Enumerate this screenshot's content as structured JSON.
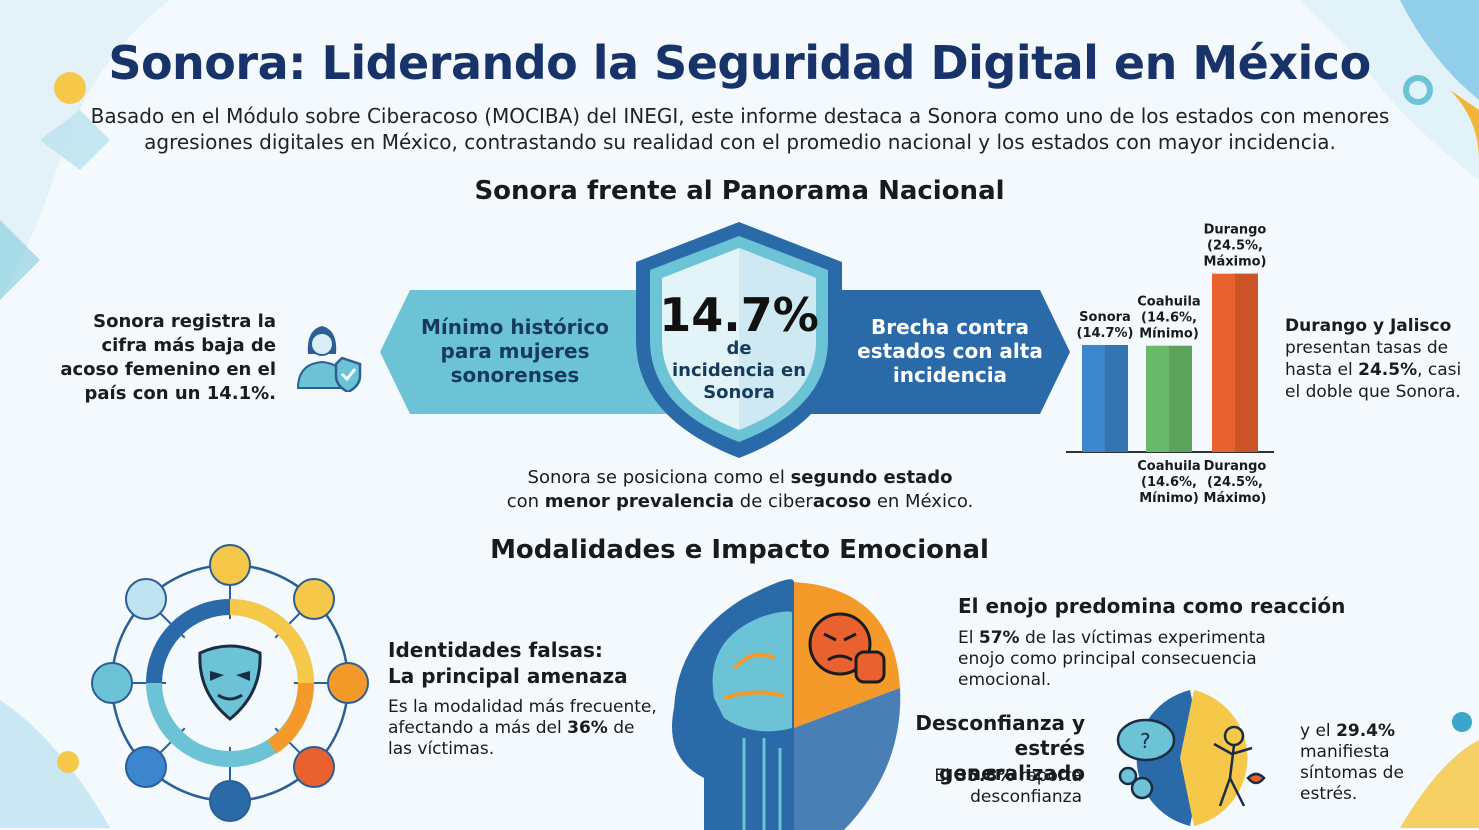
{
  "header": {
    "title": "Sonora: Liderando la Seguridad Digital en México",
    "subtitle": "Basado en el Módulo sobre Ciberacoso (MOCIBA) del INEGI, este informe destaca a Sonora como uno de los estados con menores agresiones digitales en México, contrastando su realidad con el promedio nacional y los estados con mayor incidencia."
  },
  "section1": {
    "title": "Sonora frente al Panorama Nacional",
    "left_text": "Sonora registra la cifra más baja de acoso femenino en el país con un 14.1%.",
    "left_arrow": "Mínimo histórico para mujeres sonorenses",
    "shield_value": "14.7%",
    "shield_label": "de incidencia en Sonora",
    "right_arrow": "Brecha contra estados con alta incidencia",
    "bottom_text_a": "Sonora se posiciona como el ",
    "bottom_text_b": "segundo estado",
    "bottom_text_c": "con ",
    "bottom_text_d": "menor prevalencia",
    "bottom_text_e": " de ciber",
    "bottom_text_f": "acoso",
    "bottom_text_g": " en México.",
    "right_text_a": "Durango y Jalisco",
    "right_text_b": "presentan tasas de hasta el ",
    "right_text_c": "24.5%",
    "right_text_d": ", casi el doble que Sonora."
  },
  "chart_data": {
    "type": "bar",
    "categories": [
      "Sonora",
      "Coahuila",
      "Durango"
    ],
    "values": [
      14.7,
      14.6,
      24.5
    ],
    "top_labels": [
      "Sonora (14.7%)",
      "Coahuila (14.6%, Mínimo)",
      "Durango (24.5%, Máximo)"
    ],
    "bottom_labels": [
      "",
      "Coahuila (14.6%, Mínimo)",
      "Durango (24.5%, Máximo)"
    ],
    "colors": [
      "#3b86cc",
      "#69b96a",
      "#e8612f"
    ]
  },
  "section2": {
    "title": "Modalidades e Impacto Emocional",
    "identity_title": "Identidades falsas: La principal amenaza",
    "identity_text_a": "Es la modalidad más frecuente, afectando a más del ",
    "identity_text_b": "36%",
    "identity_text_c": " de las víctimas.",
    "anger_title": "El enojo predomina como reacción",
    "anger_text_a": "El ",
    "anger_text_b": "57%",
    "anger_text_c": " de las víctimas experimenta enojo como principal consecuencia emocional.",
    "distrust_title": "Desconfianza y estrés generalizado",
    "distrust_text_a": "El ",
    "distrust_text_b": "35.8%",
    "distrust_text_c": " reporta desconfianza",
    "stress_text_a": "y el ",
    "stress_text_b": "29.4%",
    "stress_text_c": " manifiesta síntomas de estrés."
  },
  "colors": {
    "title": "#18336a",
    "teal": "#6cc3d5",
    "navy": "#2b5f95",
    "orange": "#f39a2b"
  },
  "icons": [
    "woman-shield-icon",
    "mask-icon",
    "angry-face-icon",
    "thought-bubble-icon",
    "stress-person-icon"
  ]
}
